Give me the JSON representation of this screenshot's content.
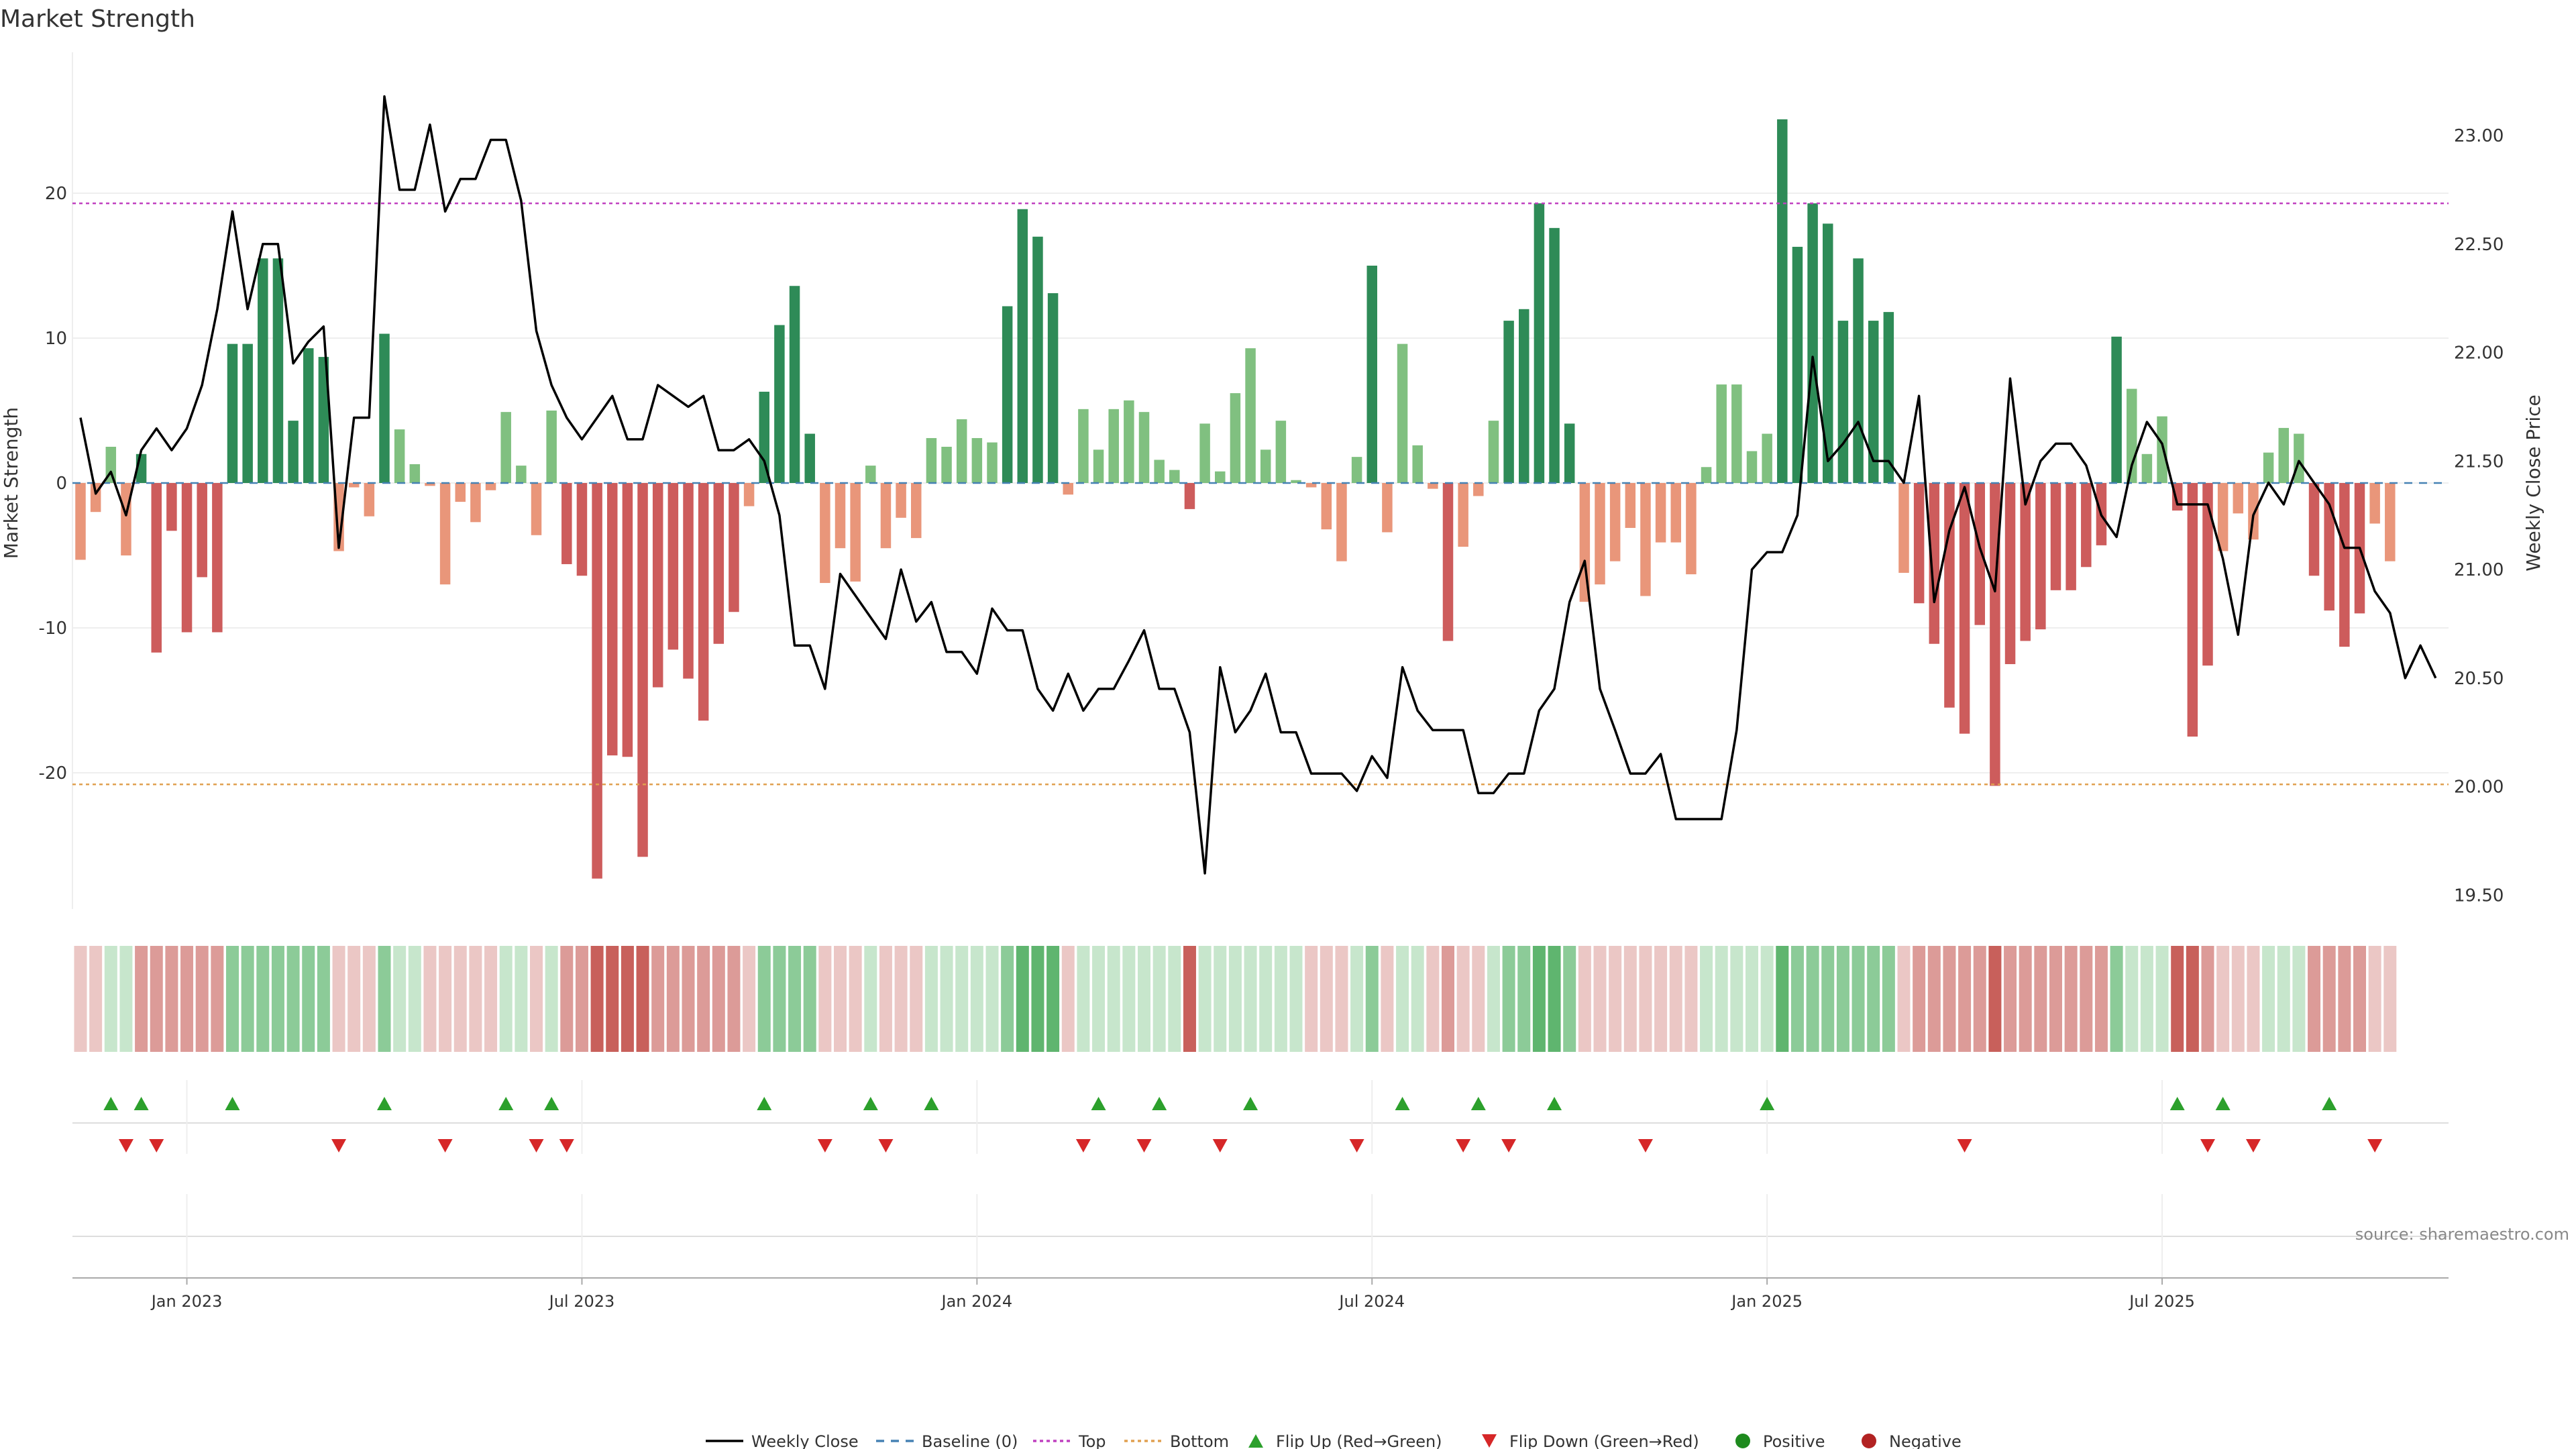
{
  "chart_data": {
    "type": "bar",
    "title": "Market Strength",
    "xlabel": "",
    "ylabel": "Market Strength",
    "y2label": "Weekly Close Price",
    "ylim": [
      -29,
      30
    ],
    "y2lim": [
      19.4,
      23.3
    ],
    "yticks": [
      20,
      10,
      0,
      -10,
      -20
    ],
    "y2ticks": [
      "23.00",
      "22.50",
      "22.00",
      "21.50",
      "21.00",
      "20.50",
      "20.00",
      "19.50"
    ],
    "xticks": [
      "Jan 2023",
      "Jul 2023",
      "Jan 2024",
      "Jul 2024",
      "Jan 2025",
      "Jul 2025"
    ],
    "x_tick_positions": [
      7,
      33,
      59,
      85,
      111,
      137
    ],
    "top_threshold": 19.3,
    "bottom_threshold": -20.8,
    "baseline": 0,
    "strength": [
      -5.3,
      -2,
      2.5,
      -5,
      2,
      -11.7,
      -3.3,
      -10.3,
      -6.5,
      -10.3,
      9.6,
      9.6,
      15.5,
      15.5,
      4.3,
      9.3,
      8.7,
      -4.7,
      -0.3,
      -2.3,
      10.3,
      3.7,
      1.3,
      -0.2,
      -7,
      -1.3,
      -2.7,
      -0.5,
      4.9,
      1.2,
      -3.6,
      5,
      -5.6,
      -6.4,
      -27.3,
      -18.8,
      -18.9,
      -25.8,
      -14.1,
      -11.5,
      -13.5,
      -16.4,
      -11.1,
      -8.9,
      -1.6,
      6.3,
      10.9,
      13.6,
      3.4,
      -6.9,
      -4.5,
      -6.8,
      1.2,
      -4.5,
      -2.4,
      -3.8,
      3.1,
      2.5,
      4.4,
      3.1,
      2.8,
      12.2,
      18.9,
      17,
      13.1,
      -0.8,
      5.1,
      2.3,
      5.1,
      5.7,
      4.9,
      1.6,
      0.9,
      -1.8,
      4.1,
      0.8,
      6.2,
      9.3,
      2.3,
      4.3,
      0.2,
      -0.3,
      -3.2,
      -5.4,
      1.8,
      15,
      -3.4,
      9.6,
      2.6,
      -0.4,
      -10.9,
      -4.4,
      -0.9,
      4.3,
      11.2,
      12,
      19.3,
      17.6,
      4.1,
      -8.2,
      -7,
      -5.4,
      -3.1,
      -7.8,
      -4.1,
      -4.1,
      -6.3,
      1.1,
      6.8,
      6.8,
      2.2,
      3.4,
      25.1,
      16.3,
      19.3,
      17.9,
      11.2,
      15.5,
      11.2,
      11.8,
      -6.2,
      -8.3,
      -11.1,
      -15.5,
      -17.3,
      -9.8,
      -20.9,
      -12.5,
      -10.9,
      -10.1,
      -7.4,
      -7.4,
      -5.8,
      -4.3,
      10.1,
      6.5,
      2,
      4.6,
      -1.9,
      -17.5,
      -12.6,
      -4.7,
      -2.1,
      -3.9,
      2.1,
      3.8,
      3.4,
      -6.4,
      -8.8,
      -11.3,
      -9,
      -2.8,
      -5.4
    ],
    "price": [
      21.7,
      21.35,
      21.45,
      21.25,
      21.55,
      21.65,
      21.55,
      21.65,
      21.85,
      22.2,
      22.65,
      22.2,
      22.5,
      22.5,
      21.95,
      22.05,
      22.12,
      21.1,
      21.7,
      21.7,
      23.18,
      22.75,
      22.75,
      23.05,
      22.65,
      22.8,
      22.8,
      22.98,
      22.98,
      22.7,
      22.1,
      21.85,
      21.7,
      21.6,
      21.7,
      21.8,
      21.6,
      21.6,
      21.85,
      21.8,
      21.75,
      21.8,
      21.55,
      21.55,
      21.6,
      21.5,
      21.25,
      20.65,
      20.65,
      20.45,
      20.98,
      20.88,
      20.78,
      20.68,
      21.0,
      20.76,
      20.85,
      20.62,
      20.62,
      20.52,
      20.82,
      20.72,
      20.72,
      20.45,
      20.35,
      20.52,
      20.35,
      20.45,
      20.45,
      20.58,
      20.72,
      20.45,
      20.45,
      20.25,
      19.6,
      20.55,
      20.25,
      20.35,
      20.52,
      20.25,
      20.25,
      20.06,
      20.06,
      20.06,
      19.98,
      20.14,
      20.04,
      20.55,
      20.35,
      20.26,
      20.26,
      20.26,
      19.97,
      19.97,
      20.06,
      20.06,
      20.35,
      20.45,
      20.85,
      21.04,
      20.45,
      20.26,
      20.06,
      20.06,
      20.15,
      19.85,
      19.85,
      19.85,
      19.85,
      20.26,
      21.0,
      21.08,
      21.08,
      21.25,
      21.98,
      21.5,
      21.58,
      21.68,
      21.5,
      21.5,
      21.4,
      21.8,
      20.85,
      21.18,
      21.38,
      21.1,
      20.9,
      21.88,
      21.3,
      21.5,
      21.58,
      21.58,
      21.48,
      21.25,
      21.15,
      21.48,
      21.68,
      21.58,
      21.3,
      21.3,
      21.3,
      21.05,
      20.7,
      21.25,
      21.4,
      21.3,
      21.5,
      21.4,
      21.3,
      21.1,
      21.1,
      20.9,
      20.8,
      20.5,
      20.65,
      20.5
    ],
    "heat": [
      -1,
      -1,
      1,
      1,
      -2,
      -2,
      -2,
      -2,
      -2,
      -2,
      2,
      2,
      2,
      2,
      2,
      2,
      2,
      -1,
      -1,
      -1,
      2,
      1,
      1,
      -1,
      -1,
      -1,
      -1,
      -1,
      1,
      1,
      -1,
      1,
      -2,
      -2,
      -3,
      -3,
      -3,
      -3,
      -2,
      -2,
      -2,
      -2,
      -2,
      -2,
      -1,
      2,
      2,
      2,
      2,
      -1,
      -1,
      -1,
      1,
      -1,
      -1,
      -1,
      1,
      1,
      1,
      1,
      1,
      2,
      3,
      3,
      3,
      -1,
      1,
      1,
      1,
      1,
      1,
      1,
      1,
      -3,
      1,
      1,
      1,
      1,
      1,
      1,
      1,
      -1,
      -1,
      -1,
      1,
      2,
      -1,
      1,
      1,
      -1,
      -2,
      -1,
      -1,
      1,
      2,
      2,
      3,
      3,
      2,
      -1,
      -1,
      -1,
      -1,
      -1,
      -1,
      -1,
      -1,
      1,
      1,
      1,
      1,
      1,
      3,
      2,
      2,
      2,
      2,
      2,
      2,
      2,
      -1,
      -2,
      -2,
      -2,
      -2,
      -2,
      -3,
      -2,
      -2,
      -2,
      -2,
      -2,
      -2,
      -2,
      2,
      1,
      1,
      1,
      -3,
      -3,
      -2,
      -1,
      -1,
      -1,
      1,
      1,
      1,
      -2,
      -2,
      -2,
      -2,
      -1,
      -1
    ],
    "flip_up": [
      2,
      4,
      10,
      20,
      28,
      31,
      45,
      52,
      56,
      67,
      71,
      77,
      87,
      92,
      97,
      111,
      138,
      141,
      148
    ],
    "flip_down": [
      3,
      5,
      17,
      24,
      30,
      32,
      49,
      53,
      66,
      70,
      75,
      84,
      91,
      94,
      103,
      124,
      140,
      143,
      151
    ],
    "legend": [
      "Weekly Close",
      "Baseline (0)",
      "Top",
      "Bottom",
      "Flip Up (Red→Green)",
      "Flip Down (Green→Red)",
      "Positive",
      "Negative"
    ],
    "legend_position": "bottom-center"
  },
  "colors": {
    "pos_strong": "#2e8b57",
    "pos_light": "#80c080",
    "neg_strong": "#cd5c5c",
    "neg_light": "#e9967a",
    "price_line": "#000000",
    "top_line": "#c040c0",
    "bottom_line": "#e0a050",
    "baseline": "#4682b4",
    "flip_up": "#2ca02c",
    "flip_down": "#d62728",
    "positive_dot": "#1e8a1e",
    "negative_dot": "#b22222"
  },
  "source": "source: sharemaestro.com"
}
